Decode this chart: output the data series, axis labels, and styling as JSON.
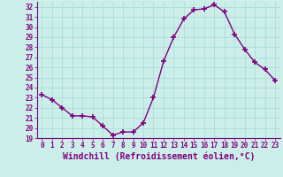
{
  "x": [
    0,
    1,
    2,
    3,
    4,
    5,
    6,
    7,
    8,
    9,
    10,
    11,
    12,
    13,
    14,
    15,
    16,
    17,
    18,
    19,
    20,
    21,
    22,
    23
  ],
  "y": [
    23.3,
    22.8,
    22.0,
    21.2,
    21.2,
    21.1,
    20.2,
    19.3,
    19.6,
    19.6,
    20.5,
    23.0,
    26.6,
    29.0,
    30.8,
    31.7,
    31.8,
    32.2,
    31.5,
    29.3,
    27.8,
    26.5,
    25.8,
    24.7
  ],
  "line_color": "#800080",
  "marker": "+",
  "marker_size": 4,
  "bg_color": "#cceee8",
  "grid_color": "#aadddd",
  "xlabel": "Windchill (Refroidissement éolien,°C)",
  "xlim": [
    -0.5,
    23.5
  ],
  "ylim": [
    19,
    32.5
  ],
  "xticks": [
    0,
    1,
    2,
    3,
    4,
    5,
    6,
    7,
    8,
    9,
    10,
    11,
    12,
    13,
    14,
    15,
    16,
    17,
    18,
    19,
    20,
    21,
    22,
    23
  ],
  "yticks": [
    19,
    20,
    21,
    22,
    23,
    24,
    25,
    26,
    27,
    28,
    29,
    30,
    31,
    32
  ],
  "tick_label_fontsize": 5.5,
  "xlabel_fontsize": 7.0,
  "line_width": 1.0,
  "marker_linewidth": 1.2,
  "axis_color": "#800080",
  "tick_color": "#800080"
}
